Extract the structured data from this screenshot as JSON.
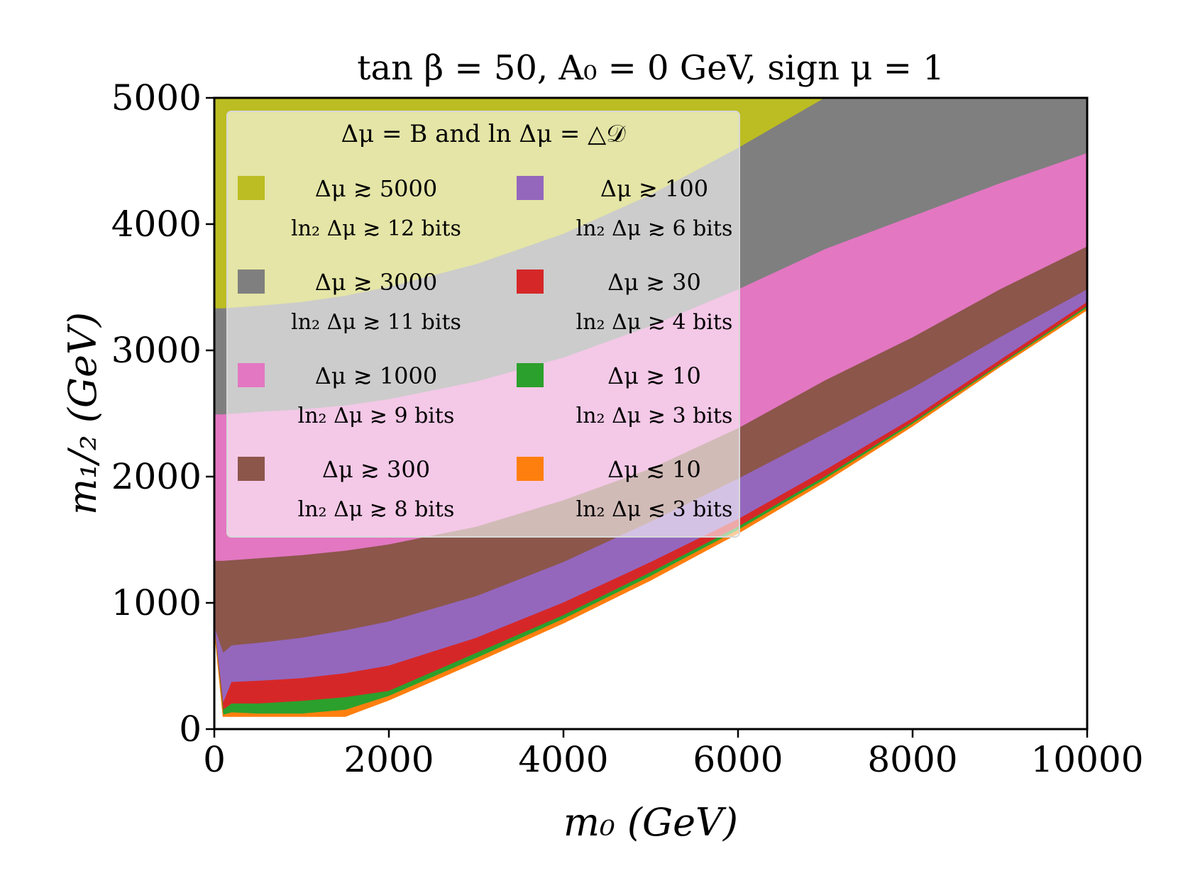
{
  "chart_data": {
    "type": "area",
    "title": "tan β = 50, A₀ = 0 GeV, sign μ = 1",
    "xlabel": "m₀ (GeV)",
    "ylabel": "m₁/₂ (GeV)",
    "xlim": [
      0,
      10000
    ],
    "ylim": [
      0,
      5000
    ],
    "xticks": [
      0,
      2000,
      4000,
      6000,
      8000,
      10000
    ],
    "yticks": [
      0,
      1000,
      2000,
      3000,
      4000,
      5000
    ],
    "xtick_labels": [
      "0",
      "2000",
      "4000",
      "6000",
      "8000",
      "10000"
    ],
    "ytick_labels": [
      "0",
      "1000",
      "2000",
      "3000",
      "4000",
      "5000"
    ],
    "grid": false,
    "legend": {
      "position": "top-left",
      "title": "Δμ = B and ln Δμ = △𝒟",
      "columns": 2
    },
    "boundary_x": [
      0,
      100,
      200,
      500,
      1000,
      1500,
      2000,
      3000,
      4000,
      5000,
      6000,
      7000,
      8000,
      9000,
      10000
    ],
    "lower_edge": [
      100,
      100,
      100,
      100,
      100,
      100,
      230,
      530,
      840,
      1180,
      1550,
      1960,
      2400,
      2870,
      3320
    ],
    "series": [
      {
        "name": "Δμ ≳ 5000",
        "legend_line1": "Δμ ≳ 5000",
        "legend_line2": "ln₂ Δμ ≳ 12 bits",
        "color": "#bcbd22",
        "lower_boundary": [
          3330,
          3330,
          3335,
          3350,
          3380,
          3430,
          3500,
          3680,
          3920,
          4230,
          4600,
          5000,
          5000,
          5000,
          5000
        ]
      },
      {
        "name": "Δμ ≳ 3000",
        "legend_line1": "Δμ ≳ 3000",
        "legend_line2": "ln₂ Δμ ≳ 11 bits",
        "color": "#7f7f7f",
        "lower_boundary": [
          2490,
          2490,
          2495,
          2510,
          2530,
          2560,
          2610,
          2750,
          2940,
          3190,
          3480,
          3800,
          4060,
          4320,
          4560
        ]
      },
      {
        "name": "Δμ ≳ 1000",
        "legend_line1": "Δμ ≳ 1000",
        "legend_line2": "ln₂ Δμ ≳ 9 bits",
        "color": "#e377c2",
        "lower_boundary": [
          1330,
          1330,
          1335,
          1350,
          1375,
          1410,
          1460,
          1600,
          1810,
          2060,
          2380,
          2760,
          3100,
          3480,
          3820
        ]
      },
      {
        "name": "Δμ ≳ 300",
        "legend_line1": "Δμ ≳ 300",
        "legend_line2": "ln₂ Δμ ≳ 8 bits",
        "color": "#8c564b",
        "lower_boundary": [
          800,
          600,
          660,
          680,
          720,
          780,
          850,
          1050,
          1320,
          1640,
          1980,
          2340,
          2700,
          3100,
          3480
        ]
      },
      {
        "name": "Δμ ≳ 100",
        "legend_line1": "Δμ ≳ 100",
        "legend_line2": "ln₂ Δμ ≳ 6 bits",
        "color": "#9467bd",
        "lower_boundary": [
          800,
          200,
          370,
          380,
          400,
          440,
          500,
          720,
          1000,
          1320,
          1660,
          2050,
          2460,
          2920,
          3380
        ]
      },
      {
        "name": "Δμ ≳ 30",
        "legend_line1": "Δμ ≳ 30",
        "legend_line2": "ln₂ Δμ ≳ 4 bits",
        "color": "#d62728",
        "lower_boundary": [
          800,
          150,
          200,
          200,
          220,
          250,
          300,
          600,
          900,
          1240,
          1600,
          2000,
          2430,
          2890,
          3350
        ]
      },
      {
        "name": "Δμ ≳ 10",
        "legend_line1": "Δμ ≳ 10",
        "legend_line2": "ln₂ Δμ ≳ 3 bits",
        "color": "#2ca02c",
        "lower_boundary": [
          800,
          110,
          130,
          120,
          120,
          150,
          260,
          560,
          870,
          1210,
          1575,
          1980,
          2415,
          2880,
          3335
        ]
      },
      {
        "name": "Δμ ≲ 10",
        "legend_line1": "Δμ ≲ 10",
        "legend_line2": "ln₂ Δμ ≲ 3 bits",
        "color": "#ff7f0e",
        "lower_boundary": [
          800,
          100,
          100,
          100,
          100,
          100,
          230,
          530,
          840,
          1180,
          1550,
          1960,
          2400,
          2870,
          3320
        ]
      }
    ]
  }
}
